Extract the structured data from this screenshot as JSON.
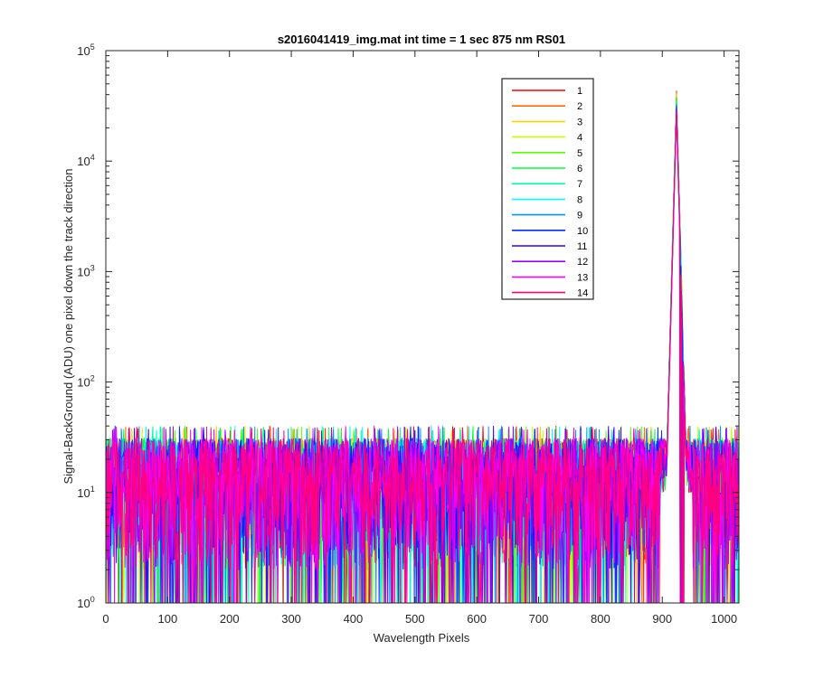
{
  "chart_data": {
    "type": "line",
    "title": "s2016041419_img.mat int time = 1 sec  875 nm RS01",
    "xlabel": "Wavelength Pixels",
    "ylabel": "Signal-BackGround (ADU) one pixel down the track direction",
    "xlim": [
      0,
      1024
    ],
    "ylim": [
      1,
      100000
    ],
    "yscale": "log",
    "grid": false,
    "legend_position": "top-right",
    "x_ticks": [
      "0",
      "100",
      "200",
      "300",
      "400",
      "500",
      "600",
      "700",
      "800",
      "900",
      "1000"
    ],
    "y_ticks": [
      {
        "base": "10",
        "exp": "0"
      },
      {
        "base": "10",
        "exp": "1"
      },
      {
        "base": "10",
        "exp": "2"
      },
      {
        "base": "10",
        "exp": "3"
      },
      {
        "base": "10",
        "exp": "4"
      },
      {
        "base": "10",
        "exp": "5"
      }
    ],
    "description": {
      "noise_floor_range": [
        1,
        40
      ],
      "peak_pixel": 923,
      "peak_value": 43000
    },
    "series": [
      {
        "name": "1",
        "color": "#ff0000"
      },
      {
        "name": "2",
        "color": "#ff6a00"
      },
      {
        "name": "3",
        "color": "#ffd200"
      },
      {
        "name": "4",
        "color": "#c6ff00"
      },
      {
        "name": "5",
        "color": "#55ff00"
      },
      {
        "name": "6",
        "color": "#00ff3c"
      },
      {
        "name": "7",
        "color": "#00ffa8"
      },
      {
        "name": "8",
        "color": "#00ffff"
      },
      {
        "name": "9",
        "color": "#0096ff"
      },
      {
        "name": "10",
        "color": "#0030ff"
      },
      {
        "name": "11",
        "color": "#3c00ff"
      },
      {
        "name": "12",
        "color": "#a000ff"
      },
      {
        "name": "13",
        "color": "#ff00f0"
      },
      {
        "name": "14",
        "color": "#ff0080"
      }
    ]
  }
}
